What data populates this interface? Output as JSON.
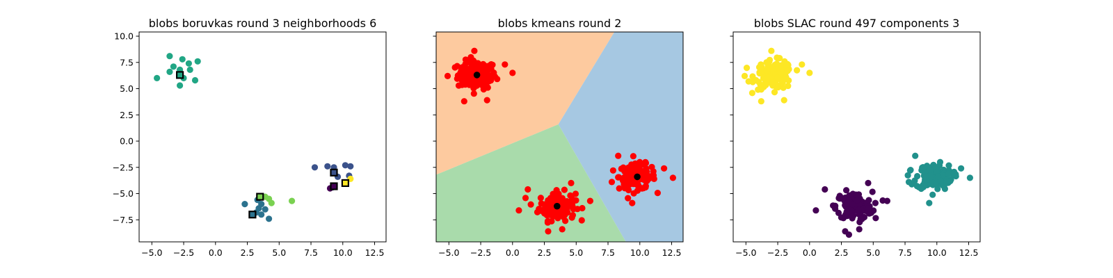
{
  "chart_data": [
    {
      "type": "scatter",
      "title": "blobs boruvkas round 3 neighborhoods 6",
      "xlim": [
        -6.0,
        13.4
      ],
      "ylim": [
        -9.6,
        10.4
      ],
      "x_ticks": [
        -5.0,
        -2.5,
        0.0,
        2.5,
        5.0,
        7.5,
        10.0,
        12.5
      ],
      "x_tick_labels": [
        "−5.0",
        "−2.5",
        "0.0",
        "2.5",
        "5.0",
        "7.5",
        "10.0",
        "12.5"
      ],
      "y_ticks": [
        10.0,
        7.5,
        5.0,
        2.5,
        0.0,
        -2.5,
        -5.0,
        -7.5
      ],
      "y_tick_labels": [
        "10.0",
        "7.5",
        "5.0",
        "2.5",
        "0.0",
        "−2.5",
        "−5.0",
        "−7.5"
      ],
      "show_y_tick_labels": true,
      "grid": false,
      "series": [
        {
          "color": "#21a685",
          "points": [
            [
              -3.6,
              8.1
            ],
            [
              -2.6,
              7.8
            ],
            [
              -1.4,
              7.6
            ],
            [
              -3.3,
              7.1
            ],
            [
              -2.1,
              7.4
            ],
            [
              -2.8,
              6.8
            ],
            [
              -3.6,
              6.6
            ],
            [
              -2.0,
              6.8
            ],
            [
              -4.6,
              6.0
            ],
            [
              -2.5,
              6.0
            ],
            [
              -1.6,
              5.8
            ],
            [
              -2.8,
              5.3
            ]
          ]
        },
        {
          "color": "#3b528b",
          "points": [
            [
              7.8,
              -2.5
            ],
            [
              8.8,
              -2.4
            ],
            [
              9.3,
              -2.5
            ],
            [
              10.2,
              -2.3
            ],
            [
              10.6,
              -2.4
            ],
            [
              9.6,
              -3.4
            ],
            [
              10.5,
              -3.3
            ],
            [
              9.2,
              -4.4
            ]
          ]
        },
        {
          "color": "#440154",
          "points": [
            [
              9.0,
              -4.5
            ]
          ]
        },
        {
          "color": "#fde725",
          "points": [
            [
              10.6,
              -3.6
            ]
          ]
        },
        {
          "color": "#2c728e",
          "points": [
            [
              2.3,
              -6.0
            ],
            [
              3.3,
              -5.6
            ],
            [
              3.6,
              -6.0
            ],
            [
              3.4,
              -6.4
            ],
            [
              3.9,
              -6.5
            ],
            [
              3.2,
              -6.8
            ],
            [
              3.6,
              -7.0
            ],
            [
              4.2,
              -7.4
            ]
          ]
        },
        {
          "color": "#7ad151",
          "points": [
            [
              3.9,
              -5.3
            ],
            [
              4.2,
              -5.5
            ],
            [
              4.4,
              -5.9
            ],
            [
              6.0,
              -5.7
            ]
          ]
        }
      ],
      "centers": [
        {
          "x": -2.8,
          "y": 6.3,
          "fill": "#21a685"
        },
        {
          "x": 9.3,
          "y": -3.0,
          "fill": "#3b528b"
        },
        {
          "x": 9.3,
          "y": -4.3,
          "fill": "#440154"
        },
        {
          "x": 10.2,
          "y": -4.0,
          "fill": "#fde725"
        },
        {
          "x": 3.5,
          "y": -5.3,
          "fill": "#7ad151"
        },
        {
          "x": 2.9,
          "y": -7.0,
          "fill": "#2c728e"
        }
      ]
    },
    {
      "type": "scatter",
      "title": "blobs kmeans round 2",
      "xlim": [
        -6.0,
        13.4
      ],
      "ylim": [
        -9.6,
        10.4
      ],
      "x_ticks": [
        -5.0,
        -2.5,
        0.0,
        2.5,
        5.0,
        7.5,
        10.0,
        12.5
      ],
      "x_tick_labels": [
        "−5.0",
        "−2.5",
        "0.0",
        "2.5",
        "5.0",
        "7.5",
        "10.0",
        "12.5"
      ],
      "y_ticks": [
        10.0,
        7.5,
        5.0,
        2.5,
        0.0,
        -2.5,
        -5.0,
        -7.5
      ],
      "y_tick_labels": [
        "10.0",
        "7.5",
        "5.0",
        "2.5",
        "0.0",
        "−2.5",
        "−5.0",
        "−7.5"
      ],
      "show_y_tick_labels": false,
      "grid": false,
      "regions": [
        {
          "color": "#fdca9f",
          "polygon": [
            [
              -6.0,
              10.4
            ],
            [
              8.0,
              10.4
            ],
            [
              3.6,
              1.6
            ],
            [
              -6.0,
              -3.2
            ]
          ]
        },
        {
          "color": "#a6c8e2",
          "polygon": [
            [
              8.0,
              10.4
            ],
            [
              13.4,
              10.4
            ],
            [
              13.4,
              -9.6
            ],
            [
              8.9,
              -9.6
            ],
            [
              3.6,
              1.6
            ]
          ]
        },
        {
          "color": "#a9dbab",
          "polygon": [
            [
              -6.0,
              -3.2
            ],
            [
              3.6,
              1.6
            ],
            [
              8.9,
              -9.6
            ],
            [
              -6.0,
              -9.6
            ]
          ]
        }
      ],
      "clusters": [
        {
          "center": [
            -2.8,
            6.3
          ],
          "spread": [
            1.0,
            0.9
          ],
          "count": 130,
          "outliers": [
            [
              -5.1,
              6.2
            ],
            [
              0.0,
              6.5
            ],
            [
              -0.6,
              7.3
            ],
            [
              -3.8,
              3.8
            ],
            [
              -2.0,
              3.9
            ],
            [
              -3.0,
              8.6
            ]
          ]
        },
        {
          "center": [
            3.5,
            -6.2
          ],
          "spread": [
            0.95,
            0.9
          ],
          "count": 130,
          "outliers": [
            [
              0.5,
              -6.6
            ],
            [
              1.2,
              -4.6
            ],
            [
              6.1,
              -5.7
            ],
            [
              4.6,
              -4.0
            ],
            [
              2.8,
              -8.6
            ],
            [
              3.9,
              -8.4
            ]
          ]
        },
        {
          "center": [
            9.8,
            -3.4
          ],
          "spread": [
            0.95,
            0.8
          ],
          "count": 130,
          "outliers": [
            [
              7.9,
              -2.8
            ],
            [
              7.8,
              -3.9
            ],
            [
              12.6,
              -3.5
            ],
            [
              9.4,
              -5.9
            ],
            [
              11.9,
              -2.6
            ],
            [
              8.3,
              -1.4
            ]
          ]
        }
      ],
      "point_color": "#ff0000",
      "centers": [
        {
          "x": -2.8,
          "y": 6.3,
          "fill": "#000000"
        },
        {
          "x": 3.5,
          "y": -6.2,
          "fill": "#000000"
        },
        {
          "x": 9.8,
          "y": -3.4,
          "fill": "#000000"
        }
      ]
    },
    {
      "type": "scatter",
      "title": "blobs SLAC round 497 components 3",
      "xlim": [
        -6.0,
        13.4
      ],
      "ylim": [
        -9.6,
        10.4
      ],
      "x_ticks": [
        -5.0,
        -2.5,
        0.0,
        2.5,
        5.0,
        7.5,
        10.0,
        12.5
      ],
      "x_tick_labels": [
        "−5.0",
        "−2.5",
        "0.0",
        "2.5",
        "5.0",
        "7.5",
        "10.0",
        "12.5"
      ],
      "y_ticks": [
        10.0,
        7.5,
        5.0,
        2.5,
        0.0,
        -2.5,
        -5.0,
        -7.5
      ],
      "y_tick_labels": [
        "10.0",
        "7.5",
        "5.0",
        "2.5",
        "0.0",
        "−2.5",
        "−5.0",
        "−7.5"
      ],
      "show_y_tick_labels": false,
      "grid": false,
      "clusters": [
        {
          "center": [
            -2.8,
            6.3
          ],
          "spread": [
            1.0,
            0.9
          ],
          "count": 130,
          "color": "#fde725",
          "outliers": [
            [
              -5.1,
              6.2
            ],
            [
              0.0,
              6.5
            ],
            [
              -0.6,
              7.3
            ],
            [
              -3.8,
              3.8
            ],
            [
              -2.0,
              3.9
            ],
            [
              -3.0,
              8.6
            ]
          ]
        },
        {
          "center": [
            3.5,
            -6.2
          ],
          "spread": [
            0.95,
            0.9
          ],
          "count": 130,
          "color": "#440154",
          "outliers": [
            [
              0.5,
              -6.6
            ],
            [
              1.2,
              -4.6
            ],
            [
              6.1,
              -5.7
            ],
            [
              4.6,
              -4.0
            ],
            [
              2.8,
              -8.6
            ],
            [
              3.9,
              -8.4
            ]
          ]
        },
        {
          "center": [
            9.8,
            -3.4
          ],
          "spread": [
            0.95,
            0.8
          ],
          "count": 130,
          "color": "#21918c",
          "outliers": [
            [
              7.9,
              -2.8
            ],
            [
              7.8,
              -3.9
            ],
            [
              12.6,
              -3.5
            ],
            [
              9.4,
              -5.9
            ],
            [
              11.9,
              -2.6
            ],
            [
              8.3,
              -1.4
            ]
          ]
        }
      ]
    }
  ]
}
